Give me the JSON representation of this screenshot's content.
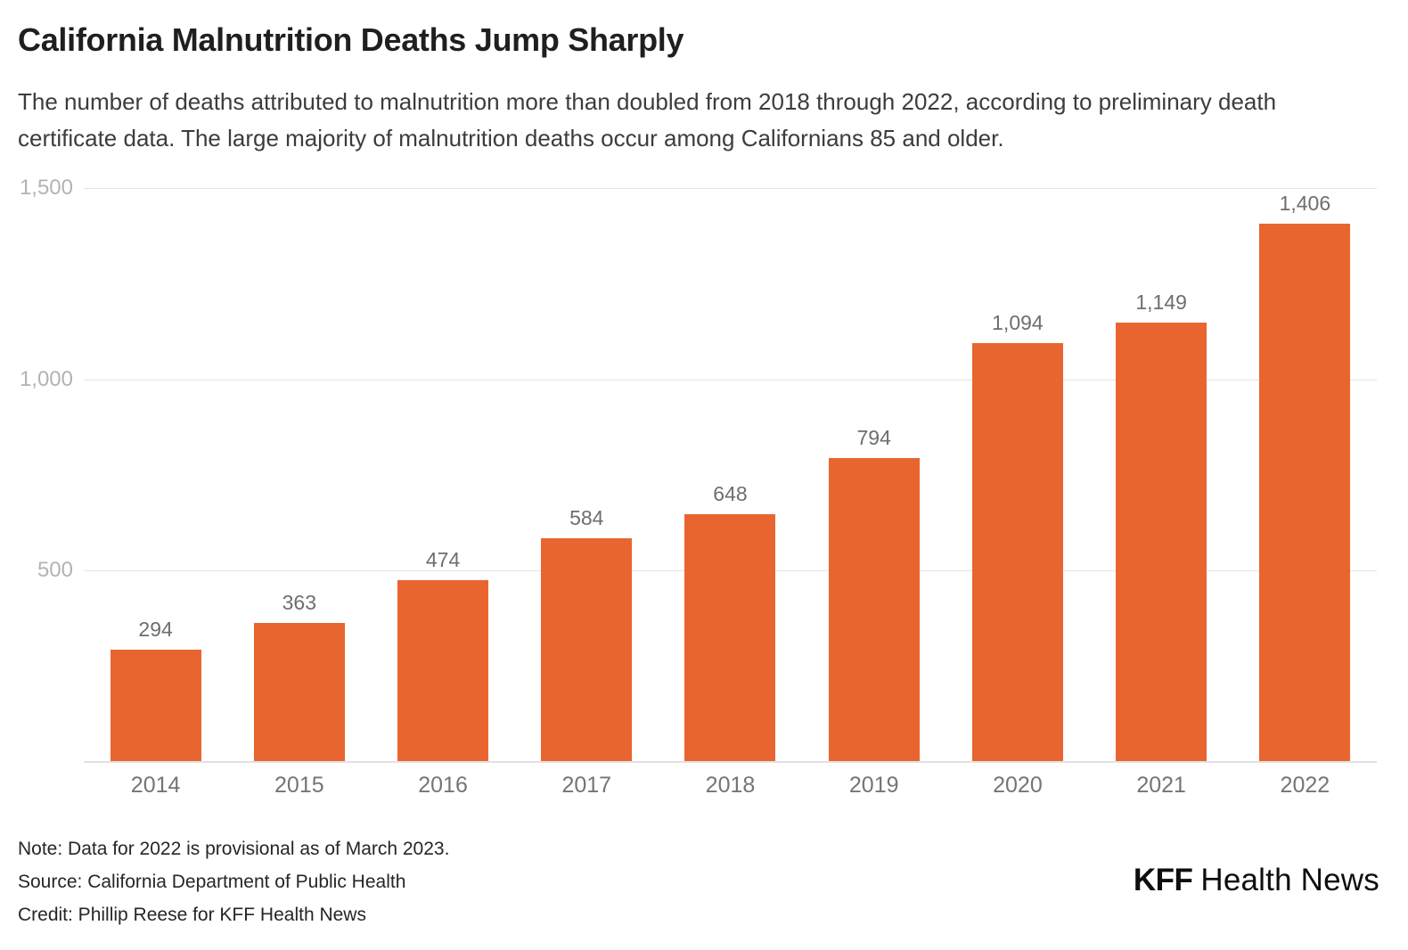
{
  "chart_data": {
    "type": "bar",
    "title": "California Malnutrition Deaths Jump Sharply",
    "subtitle": "The number of deaths attributed to malnutrition more than doubled from 2018 through 2022, according to preliminary death certificate data. The large majority of malnutrition deaths occur among Californians 85 and older.",
    "categories": [
      "2014",
      "2015",
      "2016",
      "2017",
      "2018",
      "2019",
      "2020",
      "2021",
      "2022"
    ],
    "values": [
      294,
      363,
      474,
      584,
      648,
      794,
      1094,
      1149,
      1406
    ],
    "value_labels": [
      "294",
      "363",
      "474",
      "584",
      "648",
      "794",
      "1,094",
      "1,149",
      "1,406"
    ],
    "xlabel": "",
    "ylabel": "",
    "ylim": [
      0,
      1500
    ],
    "yticks": [
      {
        "value": 500,
        "label": "500"
      },
      {
        "value": 1000,
        "label": "1,000"
      },
      {
        "value": 1500,
        "label": "1,500"
      }
    ],
    "grid": "horizontal",
    "legend": "none",
    "bar_color": "#E96530"
  },
  "footer": {
    "note": "Note: Data for 2022 is provisional as of March 2023.",
    "source": "Source: California Department of Public Health",
    "credit": "Credit: Phillip Reese for KFF Health News"
  },
  "logo": {
    "kff": "KFF",
    "name": "Health News"
  },
  "colors": {
    "bar": "#E96530",
    "grid": "#E4E4E4",
    "axis_line": "#E2E2E2",
    "ytick_text": "#B3B3B3",
    "value_text": "#6E6E6E",
    "xtick_text": "#757575",
    "title_text": "#1F1F1F",
    "subtitle_text": "#3C3C3C",
    "footer_text": "#262626",
    "logo_text": "#0E0E0E"
  }
}
